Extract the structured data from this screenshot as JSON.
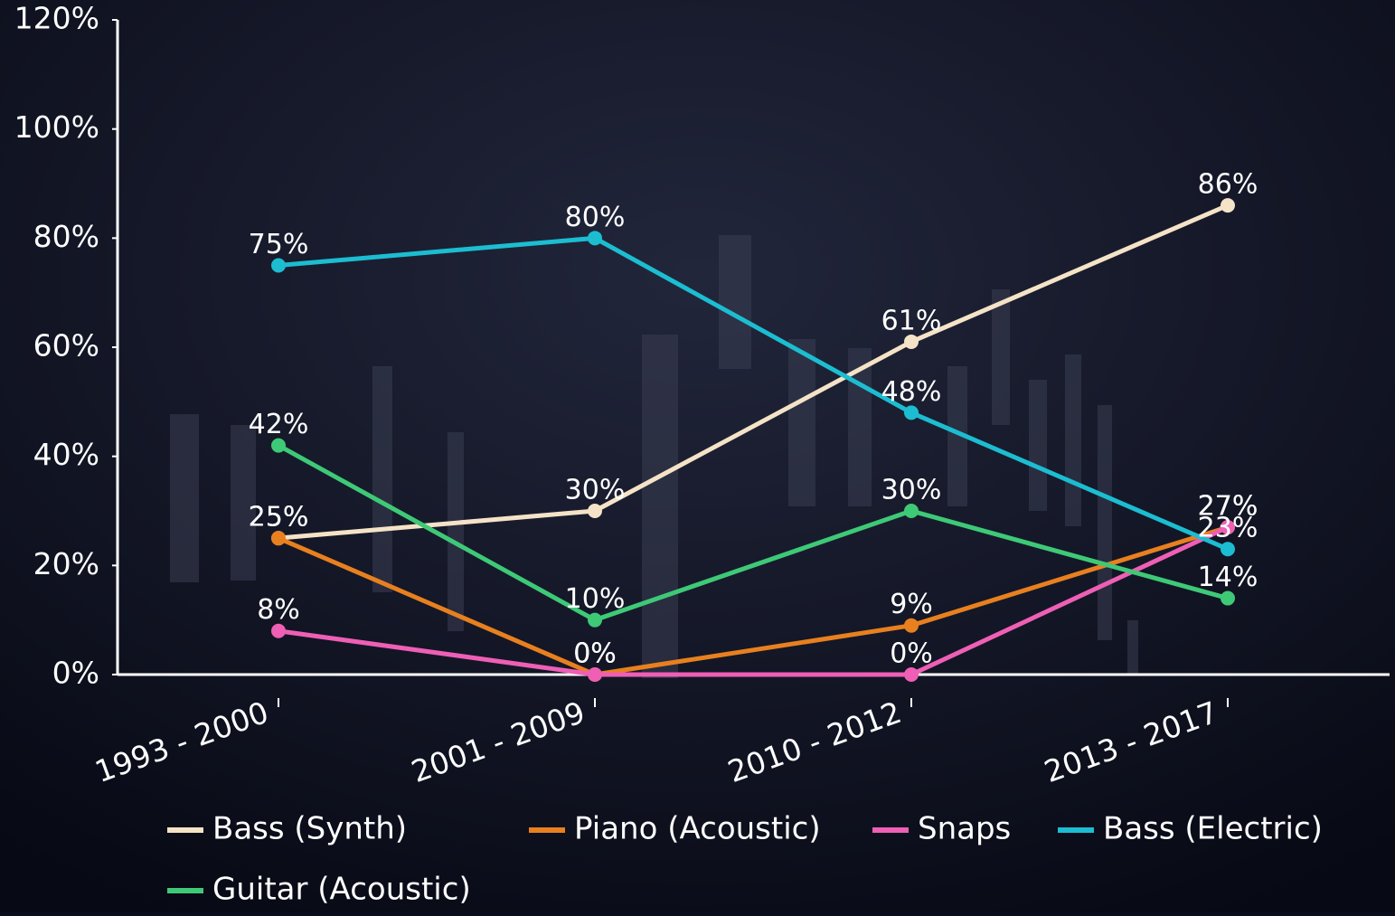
{
  "chart_data": {
    "type": "line",
    "categories": [
      "1993 - 2000",
      "2001 - 2009",
      "2010 - 2012",
      "2013 - 2017"
    ],
    "series": [
      {
        "name": "Bass (Synth)",
        "color": "#f5e3c7",
        "values": [
          25,
          30,
          61,
          86
        ],
        "value_labels": [
          "25%",
          "30%",
          "61%",
          "86%"
        ]
      },
      {
        "name": "Piano (Acoustic)",
        "color": "#e8801f",
        "values": [
          25,
          0,
          9,
          27
        ],
        "value_labels": [
          "25%",
          "0%",
          "9%",
          "27%"
        ]
      },
      {
        "name": "Snaps",
        "color": "#ee5fb5",
        "values": [
          8,
          0,
          0,
          27
        ],
        "value_labels": [
          "8%",
          "0%",
          "0%",
          "27%"
        ]
      },
      {
        "name": "Bass (Electric)",
        "color": "#1cbdd1",
        "values": [
          75,
          80,
          48,
          23
        ],
        "value_labels": [
          "75%",
          "80%",
          "48%",
          "23%"
        ]
      },
      {
        "name": "Guitar (Acoustic)",
        "color": "#3ec977",
        "values": [
          42,
          10,
          30,
          14
        ],
        "value_labels": [
          "42%",
          "10%",
          "30%",
          "14%"
        ]
      }
    ],
    "ylim": [
      0,
      120
    ],
    "yticks": [
      {
        "value": 0,
        "label": "0%"
      },
      {
        "value": 20,
        "label": "20%"
      },
      {
        "value": 40,
        "label": "40%"
      },
      {
        "value": 60,
        "label": "60%"
      },
      {
        "value": 80,
        "label": "80%"
      },
      {
        "value": 100,
        "label": "100%"
      },
      {
        "value": 120,
        "label": "120%"
      }
    ],
    "grid": false,
    "legend": "bottom"
  }
}
